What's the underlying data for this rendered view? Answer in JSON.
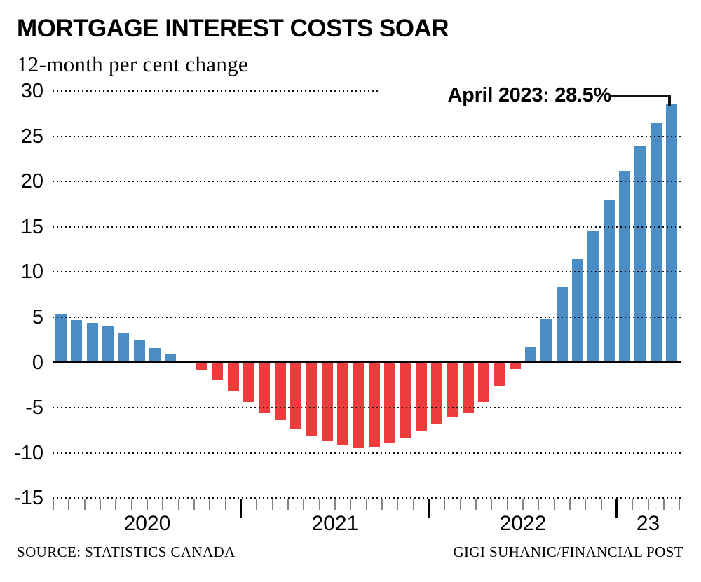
{
  "header": {
    "title": "MORTGAGE INTEREST COSTS SOAR",
    "subtitle": "12-month per cent change"
  },
  "annotation": {
    "text": "April 2023: 28.5%"
  },
  "footer": {
    "source": "SOURCE: STATISTICS CANADA",
    "credit": "GIGI SUHANIC/FINANCIAL POST"
  },
  "chart_data": {
    "type": "bar",
    "title": "MORTGAGE INTEREST COSTS SOAR",
    "subtitle": "12-month per cent change",
    "unit": "percent (12-month change)",
    "x": [
      "2020-01",
      "2020-02",
      "2020-03",
      "2020-04",
      "2020-05",
      "2020-06",
      "2020-07",
      "2020-08",
      "2020-09",
      "2020-10",
      "2020-11",
      "2020-12",
      "2021-01",
      "2021-02",
      "2021-03",
      "2021-04",
      "2021-05",
      "2021-06",
      "2021-07",
      "2021-08",
      "2021-09",
      "2021-10",
      "2021-11",
      "2021-12",
      "2022-01",
      "2022-02",
      "2022-03",
      "2022-04",
      "2022-05",
      "2022-06",
      "2022-07",
      "2022-08",
      "2022-09",
      "2022-10",
      "2022-11",
      "2022-12",
      "2023-01",
      "2023-02",
      "2023-03",
      "2023-04"
    ],
    "values": [
      5.3,
      4.7,
      4.4,
      4.0,
      3.3,
      2.5,
      1.6,
      0.9,
      0.05,
      -0.8,
      -1.9,
      -3.1,
      -4.4,
      -5.5,
      -6.3,
      -7.3,
      -8.2,
      -8.7,
      -9.1,
      -9.4,
      -9.3,
      -8.9,
      -8.3,
      -7.6,
      -6.8,
      -6.0,
      -5.5,
      -4.4,
      -2.6,
      -0.7,
      1.7,
      4.8,
      8.3,
      11.4,
      14.5,
      18.0,
      21.2,
      23.9,
      26.4,
      28.5
    ],
    "yticks": [
      30,
      25,
      20,
      15,
      10,
      5,
      0,
      -5,
      -10,
      -15
    ],
    "ylim": [
      -15,
      30
    ],
    "grid": "horizontal dotted lines drawn over bars; solid zero line",
    "legend": "none",
    "year_labels": [
      {
        "label": "2020",
        "start": 0,
        "end": 12
      },
      {
        "label": "2021",
        "start": 12,
        "end": 24
      },
      {
        "label": "2022",
        "start": 24,
        "end": 36
      },
      {
        "label": "23",
        "start": 36,
        "end": 40
      }
    ],
    "positive_color": "#4a8ec5",
    "negative_color": "#ee3b3c",
    "tick_color_month": "#868686",
    "tick_color_year": "#000000",
    "annotation": {
      "text": "April 2023: 28.5%",
      "target": "2023-04",
      "value": 28.5
    }
  }
}
